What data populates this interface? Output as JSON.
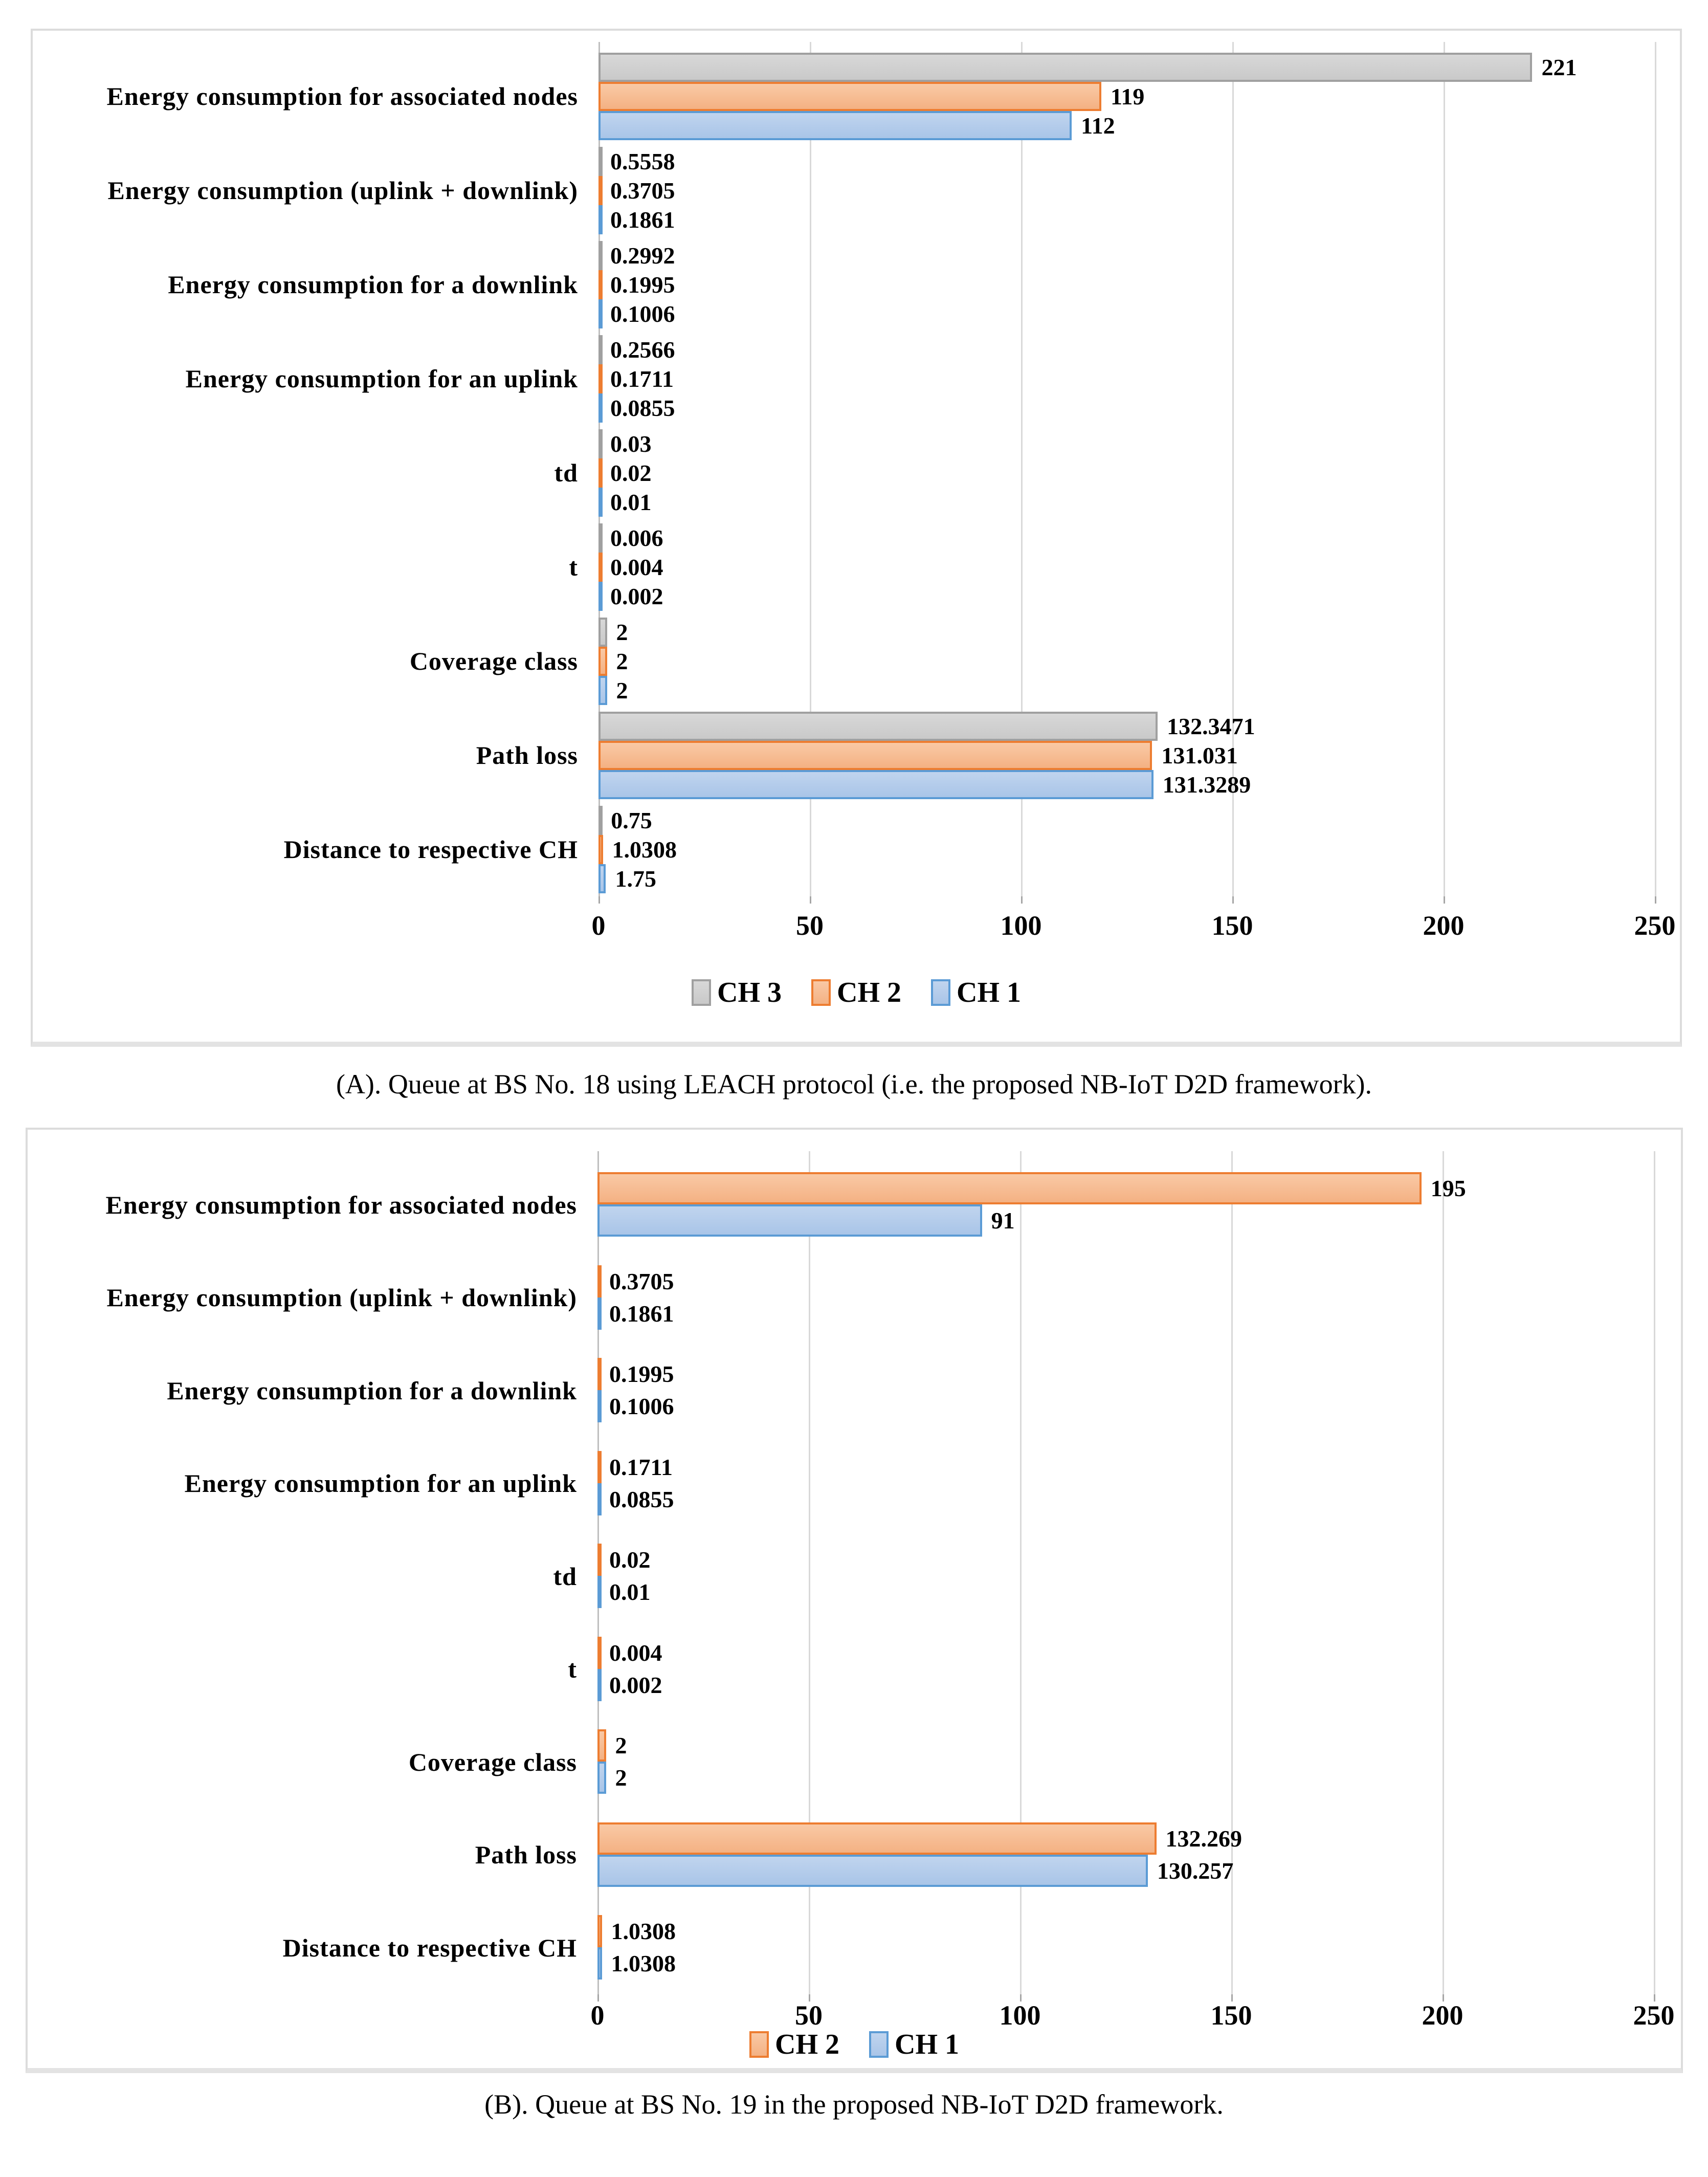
{
  "colors": {
    "gridline": "#d9d9d9",
    "axis": "#bfbfbf",
    "panel_border": "#dcdcdc",
    "text": "#000000",
    "series_palette": {
      "gray": {
        "fill": "#c9c9c9",
        "fill_light": "#d8d8d8",
        "border": "#a0a0a0"
      },
      "orange": {
        "fill": "#f4b183",
        "fill_light": "#f9c9a5",
        "border": "#ed7d31"
      },
      "blue": {
        "fill": "#a9c5e8",
        "fill_light": "#c0d4ee",
        "border": "#5b9bd5"
      }
    }
  },
  "charts": [
    {
      "name": "A",
      "caption": "(A). Queue at BS No. 18 using LEACH protocol (i.e. the proposed NB-IoT D2D framework).",
      "chart_data": {
        "type": "bar",
        "orientation": "horizontal",
        "title": "",
        "xlabel": "",
        "ylabel": "",
        "xlim": [
          0,
          250
        ],
        "x_ticks": [
          "0",
          "50",
          "100",
          "150",
          "200",
          "250"
        ],
        "grid": true,
        "legend_position": "bottom",
        "categories": [
          "Energy consumption for associated nodes",
          "Energy consumption (uplink + downlink)",
          "Energy consumption for a downlink",
          "Energy consumption for an uplink",
          "td",
          "t",
          "Coverage class",
          "Path loss",
          "Distance to respective CH"
        ],
        "series": [
          {
            "name": "CH 3",
            "color": "gray",
            "values": [
              221,
              0.5558,
              0.2992,
              0.2566,
              0.03,
              0.006,
              2,
              132.3471,
              0.75
            ]
          },
          {
            "name": "CH 2",
            "color": "orange",
            "values": [
              119,
              0.3705,
              0.1995,
              0.1711,
              0.02,
              0.004,
              2,
              131.031,
              1.0308
            ]
          },
          {
            "name": "CH 1",
            "color": "blue",
            "values": [
              112,
              0.1861,
              0.1006,
              0.0855,
              0.01,
              0.002,
              2,
              131.3289,
              1.75
            ]
          }
        ]
      }
    },
    {
      "name": "B",
      "caption": "(B). Queue at BS No. 19 in the proposed NB-IoT D2D framework.",
      "chart_data": {
        "type": "bar",
        "orientation": "horizontal",
        "title": "",
        "xlabel": "",
        "ylabel": "",
        "xlim": [
          0,
          250
        ],
        "x_ticks": [
          "0",
          "50",
          "100",
          "150",
          "200",
          "250"
        ],
        "grid": true,
        "legend_position": "bottom",
        "categories": [
          "Energy consumption for associated nodes",
          "Energy consumption (uplink + downlink)",
          "Energy consumption for a downlink",
          "Energy consumption for an uplink",
          "td",
          "t",
          "Coverage class",
          "Path loss",
          "Distance to respective CH"
        ],
        "series": [
          {
            "name": "CH 2",
            "color": "orange",
            "values": [
              195,
              0.3705,
              0.1995,
              0.1711,
              0.02,
              0.004,
              2,
              132.269,
              1.0308
            ]
          },
          {
            "name": "CH 1",
            "color": "blue",
            "values": [
              91,
              0.1861,
              0.1006,
              0.0855,
              0.01,
              0.002,
              2,
              130.257,
              1.0308
            ]
          }
        ]
      }
    }
  ]
}
